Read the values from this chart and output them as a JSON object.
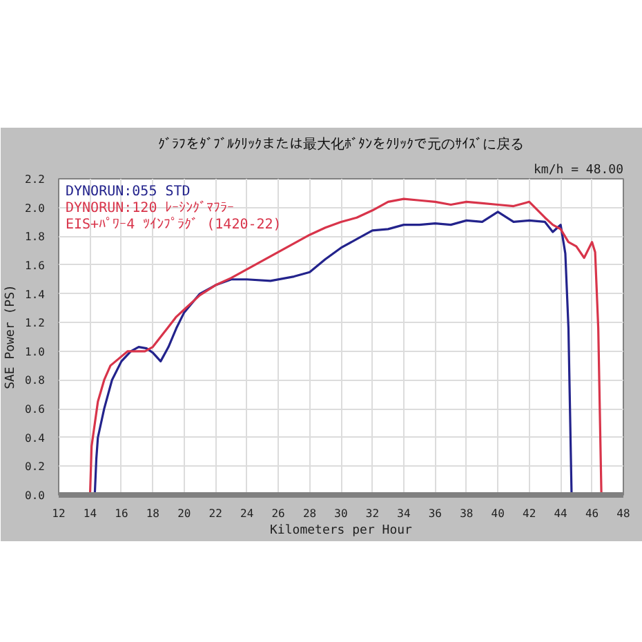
{
  "chart_data": {
    "type": "line",
    "subtitle": "ｸﾞﾗﾌをﾀﾞﾌﾞﾙｸﾘｯｸまたは最大化ﾎﾞﾀﾝをｸﾘｯｸで元のｻｲｽﾞに戻る",
    "xlabel": "Kilometers per Hour",
    "ylabel": "SAE Power (PS)",
    "annotations": [
      "km/h = 48.00"
    ],
    "xlim": [
      12,
      48
    ],
    "xticks": [
      12,
      14,
      16,
      18,
      20,
      22,
      24,
      26,
      28,
      30,
      32,
      34,
      36,
      38,
      40,
      42,
      44,
      46,
      48
    ],
    "ylim": [
      0,
      2.2
    ],
    "yticks": [
      {
        "value": 0,
        "label": "0.0"
      },
      0.2,
      0.4,
      0.6,
      0.8,
      {
        "value": 1,
        "label": "1.0"
      },
      1.2,
      1.4,
      1.6,
      1.8,
      {
        "value": 2,
        "label": "2.0"
      },
      2.2
    ],
    "grid": true,
    "legend": "top left",
    "line_style": "solid",
    "series": [
      {
        "name": "DYNORUN:055  STD",
        "color": "#23238c",
        "x": [
          14.3,
          14.4,
          14.5,
          14.9,
          15.4,
          16.0,
          16.6,
          17.1,
          17.6,
          18.0,
          18.5,
          19.0,
          19.5,
          20.0,
          21.0,
          22.0,
          23.0,
          24.0,
          25.5,
          27.0,
          28.0,
          29.0,
          30.0,
          31.0,
          32.0,
          33.0,
          34.0,
          35.0,
          36.0,
          37.0,
          38.0,
          39.0,
          40.0,
          41.0,
          42.0,
          43.0,
          43.5,
          43.8,
          44.0,
          44.3,
          44.5,
          44.7
        ],
        "values": [
          0,
          0.25,
          0.4,
          0.6,
          0.8,
          0.93,
          1.0,
          1.03,
          1.02,
          0.99,
          0.93,
          1.03,
          1.16,
          1.27,
          1.4,
          1.46,
          1.5,
          1.5,
          1.49,
          1.52,
          1.55,
          1.64,
          1.72,
          1.78,
          1.84,
          1.85,
          1.88,
          1.88,
          1.89,
          1.88,
          1.91,
          1.9,
          1.97,
          1.9,
          1.91,
          1.9,
          1.83,
          1.86,
          1.88,
          1.68,
          1.16,
          0
        ]
      },
      {
        "name": "DYNORUN:120  ﾚｰｼﾝｸﾞﾏﾌﾗｰ EIS+ﾊﾟﾜｰ4 ﾂｲﾝﾌﾟﾗｸﾞ (1420-22)",
        "color": "#d8344a",
        "x": [
          14.0,
          14.1,
          14.5,
          14.9,
          15.3,
          16.4,
          17.0,
          17.5,
          18.0,
          18.5,
          19.0,
          19.5,
          20.0,
          21.0,
          22.0,
          23.0,
          24.0,
          25.0,
          26.0,
          27.0,
          28.0,
          29.0,
          30.0,
          31.0,
          32.0,
          33.0,
          34.0,
          35.0,
          36.0,
          37.0,
          38.0,
          39.0,
          40.0,
          41.0,
          42.0,
          43.0,
          43.5,
          44.0,
          44.5,
          45.0,
          45.5,
          46.0,
          46.2,
          46.4,
          46.6
        ],
        "values": [
          0,
          0.34,
          0.65,
          0.8,
          0.9,
          1.0,
          1.0,
          1.0,
          1.03,
          1.1,
          1.17,
          1.24,
          1.29,
          1.39,
          1.46,
          1.51,
          1.57,
          1.63,
          1.69,
          1.75,
          1.81,
          1.86,
          1.9,
          1.93,
          1.98,
          2.04,
          2.06,
          2.05,
          2.04,
          2.02,
          2.04,
          2.03,
          2.02,
          2.01,
          2.04,
          1.93,
          1.88,
          1.85,
          1.76,
          1.73,
          1.65,
          1.76,
          1.69,
          1.16,
          0
        ]
      }
    ]
  }
}
